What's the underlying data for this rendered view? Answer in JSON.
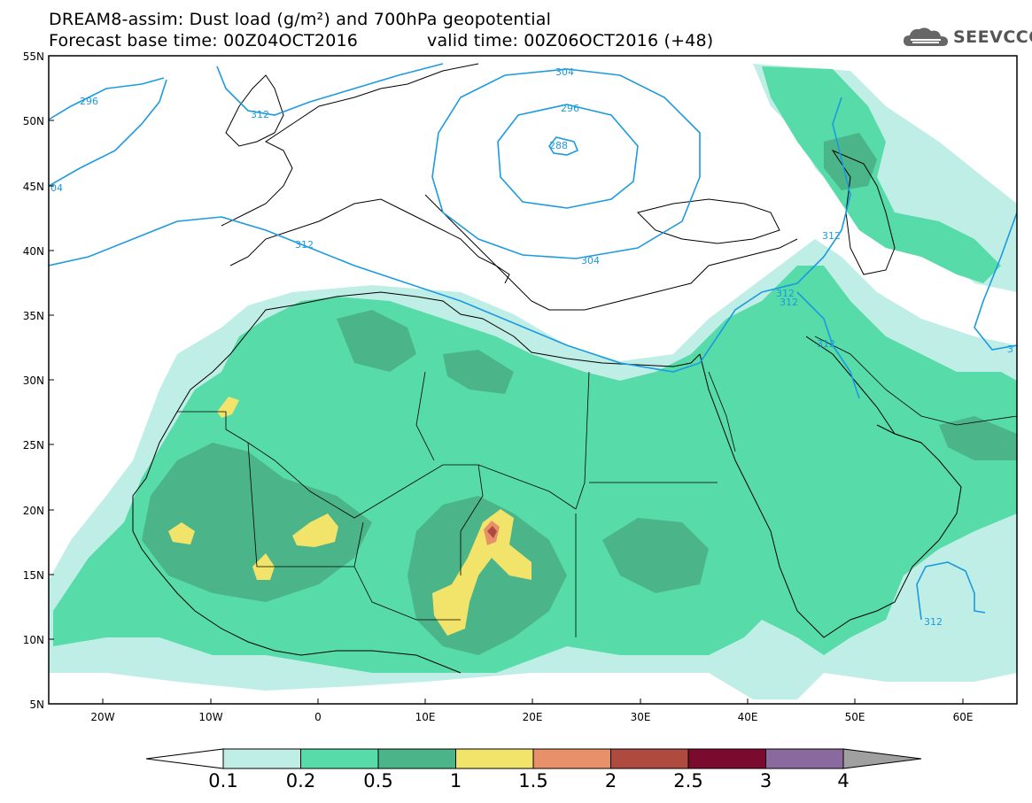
{
  "header": {
    "line1": "DREAM8-assim: Dust load (g/m²) and 700hPa geopotential",
    "line2_left": "Forecast base time: 00Z04OCT2016",
    "line2_right": "valid time: 00Z06OCT2016 (+48)"
  },
  "logo": {
    "text": "SEEVCCC",
    "icon": "cloud-icon"
  },
  "axes": {
    "lat_labels": [
      "55N",
      "50N",
      "45N",
      "40N",
      "35N",
      "30N",
      "25N",
      "20N",
      "15N",
      "10N",
      "5N"
    ],
    "lon_labels": [
      "20W",
      "10W",
      "0",
      "10E",
      "20E",
      "30E",
      "40E",
      "50E",
      "60E"
    ]
  },
  "contours": {
    "color": "#1c9ae0",
    "labels": [
      "296",
      "312",
      "04",
      "304",
      "296",
      "288",
      "312",
      "304",
      "312",
      "312",
      "312",
      "312",
      "3",
      "312"
    ]
  },
  "colorbar": {
    "colors": [
      "#bfeee6",
      "#56dba9",
      "#4bb489",
      "#f2e46b",
      "#e8906a",
      "#ae4a3e",
      "#7a0b2e",
      "#8a6a9e"
    ],
    "left_arrow_color": "#ffffff",
    "right_arrow_color": "#a0a0a0",
    "labels": [
      "0.1",
      "0.2",
      "0.5",
      "1",
      "1.5",
      "2",
      "2.5",
      "3",
      "4"
    ]
  },
  "dust_colors": {
    "light": "#bfeee6",
    "medium": "#56dba9",
    "dark": "#4bb489",
    "yellow": "#f2e46b",
    "orange": "#e8906a",
    "red": "#ae4a3e"
  }
}
